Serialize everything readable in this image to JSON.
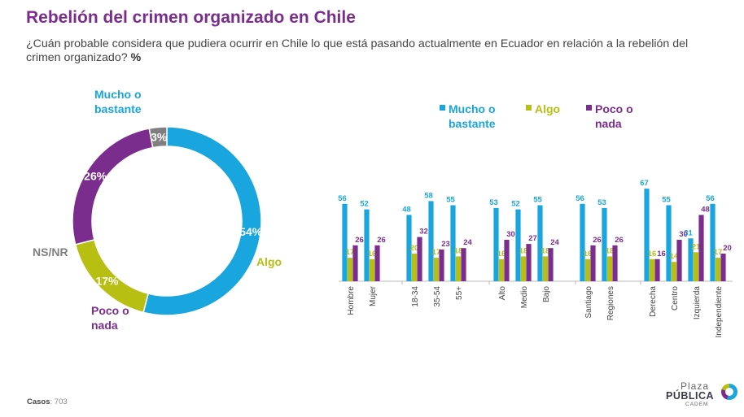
{
  "header": {
    "title": "Rebelión del crimen organizado en Chile",
    "subtitle": "¿Cuán probable considera que pudiera ocurrir en Chile lo que está pasando actualmente en Ecuador en relación a la rebelión del crimen organizado?",
    "unit": "%"
  },
  "colors": {
    "mucho": "#19A5DE",
    "algo": "#B7BF12",
    "poco": "#7B2D8E",
    "nsnr": "#7F7F7F"
  },
  "chart_data": [
    {
      "type": "pie",
      "variant": "donut",
      "slices": [
        {
          "label": "Mucho o bastante",
          "value": 54,
          "value_label": "54%",
          "color": "#19A5DE"
        },
        {
          "label": "Algo",
          "value": 17,
          "value_label": "17%",
          "color": "#B7BF12"
        },
        {
          "label": "Poco o nada",
          "value": 26,
          "value_label": "26%",
          "color": "#7B2D8E"
        },
        {
          "label": "NS/NR",
          "value": 3,
          "value_label": "3%",
          "color": "#7F7F7F"
        }
      ]
    },
    {
      "type": "bar",
      "legend": {
        "position": "top",
        "entries": [
          "Mucho o bastante",
          "Algo",
          "Poco o nada"
        ]
      },
      "categories": [
        "Hombre",
        "Mujer",
        "18-34",
        "35-54",
        "55+",
        "Alto",
        "Medio",
        "Bajo",
        "Santiago",
        "Regiones",
        "Derecha",
        "Centro",
        "Izquierda",
        "Independiente"
      ],
      "groups": [
        [
          "Hombre",
          "Mujer"
        ],
        [
          "18-34",
          "35-54",
          "55+"
        ],
        [
          "Alto",
          "Medio",
          "Bajo"
        ],
        [
          "Santiago",
          "Regiones"
        ],
        [
          "Derecha",
          "Centro",
          "Izquierda",
          "Independiente"
        ]
      ],
      "series": [
        {
          "name": "Mucho o bastante",
          "color": "#19A5DE",
          "values": [
            56,
            52,
            48,
            58,
            55,
            53,
            52,
            55,
            56,
            53,
            67,
            55,
            31,
            56
          ]
        },
        {
          "name": "Algo",
          "color": "#B7BF12",
          "values": [
            17,
            16,
            20,
            17,
            18,
            16,
            18,
            18,
            16,
            18,
            16,
            14,
            21,
            17
          ]
        },
        {
          "name": "Poco o nada",
          "color": "#7B2D8E",
          "values": [
            26,
            26,
            32,
            23,
            24,
            30,
            27,
            24,
            26,
            26,
            16,
            30,
            48,
            20
          ]
        }
      ]
    }
  ],
  "donut_labels": {
    "mucho": [
      "Mucho o",
      "bastante"
    ],
    "algo": [
      "Algo"
    ],
    "poco": [
      "Poco o",
      "nada"
    ],
    "nsnr": [
      "NS/NR"
    ]
  },
  "footer": {
    "cases_label": "Casos",
    "cases_value": "703"
  },
  "logo": {
    "line1": "Plaza",
    "line2": "PÚBLICA",
    "line3": "CADEM"
  }
}
